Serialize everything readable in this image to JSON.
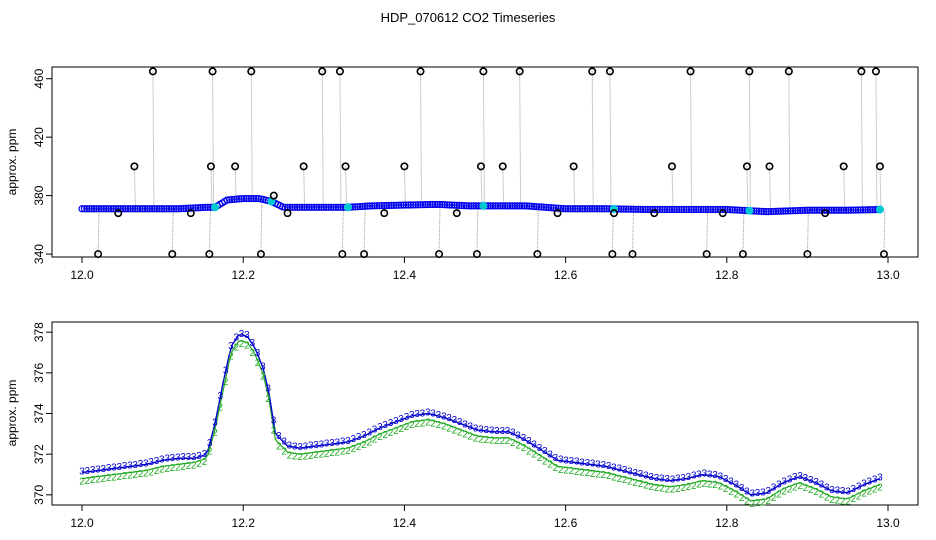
{
  "figure": {
    "title": "HDP_070612  CO2 Timeseries"
  },
  "chart_data": [
    {
      "type": "scatter",
      "panel": "top",
      "xlabel": "",
      "ylabel": "approx. ppm",
      "xlim": [
        12.0,
        13.0
      ],
      "ylim": [
        338,
        468
      ],
      "xticks": [
        "12.0",
        "12.2",
        "12.4",
        "12.6",
        "12.8",
        "13.0"
      ],
      "yticks": [
        "340",
        "380",
        "420",
        "460"
      ],
      "grid": false,
      "legend": "none",
      "colors": {
        "baseline": "#0000ee",
        "baseline_highlight": "#00c8d2",
        "outlier": "#000000",
        "drop_line": "#9a9a9a"
      },
      "baseline": {
        "x": [
          12.0,
          12.04,
          12.08,
          12.12,
          12.155,
          12.165,
          12.18,
          12.2,
          12.22,
          12.235,
          12.25,
          12.3,
          12.33,
          12.36,
          12.4,
          12.44,
          12.48,
          12.5,
          12.55,
          12.6,
          12.65,
          12.7,
          12.75,
          12.8,
          12.85,
          12.9,
          12.95,
          12.99
        ],
        "y": [
          371,
          371,
          371,
          371,
          372,
          372,
          377,
          378,
          378,
          376,
          372,
          372,
          372,
          373,
          373.5,
          374,
          373,
          373,
          373,
          371,
          371,
          370.5,
          370.5,
          370.5,
          369,
          370,
          370,
          370.5
        ]
      },
      "outliers": {
        "x": [
          12.02,
          12.045,
          12.065,
          12.088,
          12.112,
          12.135,
          12.158,
          12.16,
          12.162,
          12.19,
          12.21,
          12.222,
          12.238,
          12.255,
          12.275,
          12.298,
          12.32,
          12.323,
          12.327,
          12.35,
          12.375,
          12.4,
          12.42,
          12.443,
          12.465,
          12.49,
          12.495,
          12.498,
          12.522,
          12.543,
          12.565,
          12.59,
          12.61,
          12.633,
          12.655,
          12.658,
          12.66,
          12.683,
          12.71,
          12.732,
          12.755,
          12.775,
          12.795,
          12.82,
          12.825,
          12.828,
          12.853,
          12.877,
          12.9,
          12.922,
          12.945,
          12.967,
          12.985,
          12.99,
          12.995
        ],
        "y": [
          340,
          368,
          400,
          465,
          340,
          368,
          340,
          400,
          465,
          400,
          465,
          340,
          380,
          368,
          400,
          465,
          465,
          340,
          400,
          340,
          368,
          400,
          465,
          340,
          368,
          340,
          400,
          465,
          400,
          465,
          340,
          368,
          400,
          465,
          465,
          340,
          368,
          340,
          368,
          400,
          465,
          340,
          368,
          340,
          400,
          465,
          400,
          465,
          340,
          368,
          400,
          465,
          465,
          400,
          340
        ]
      }
    },
    {
      "type": "line",
      "panel": "bottom",
      "xlabel": "",
      "ylabel": "approx. ppm",
      "xlim": [
        12.0,
        13.0
      ],
      "ylim": [
        369.5,
        378.5
      ],
      "xticks": [
        "12.0",
        "12.2",
        "12.4",
        "12.6",
        "12.8",
        "13.0"
      ],
      "yticks": [
        "370",
        "372",
        "374",
        "376",
        "378"
      ],
      "grid": false,
      "legend": "none",
      "marker_labels": [
        "3",
        "2"
      ],
      "colors": {
        "series3": "#0000cc",
        "series2": "#22aa22",
        "line3": "#0000cc",
        "line2": "#22aa22",
        "dash": "#00c8d2"
      },
      "x": [
        12.0,
        12.02,
        12.04,
        12.06,
        12.08,
        12.1,
        12.12,
        12.14,
        12.155,
        12.165,
        12.175,
        12.185,
        12.195,
        12.205,
        12.215,
        12.225,
        12.232,
        12.24,
        12.255,
        12.27,
        12.29,
        12.31,
        12.33,
        12.35,
        12.37,
        12.39,
        12.41,
        12.43,
        12.45,
        12.47,
        12.49,
        12.51,
        12.53,
        12.55,
        12.57,
        12.59,
        12.61,
        12.63,
        12.65,
        12.67,
        12.69,
        12.71,
        12.73,
        12.75,
        12.77,
        12.79,
        12.81,
        12.83,
        12.85,
        12.87,
        12.89,
        12.91,
        12.93,
        12.95,
        12.97,
        12.99
      ],
      "series": [
        {
          "name": "3",
          "values": [
            371.1,
            371.2,
            371.3,
            371.4,
            371.5,
            371.7,
            371.8,
            371.8,
            372.0,
            373.5,
            375.5,
            377.3,
            377.9,
            377.8,
            377.2,
            376.2,
            375.0,
            373.0,
            372.4,
            372.3,
            372.4,
            372.5,
            372.6,
            372.9,
            373.3,
            373.6,
            373.9,
            374.0,
            373.8,
            373.5,
            373.2,
            373.1,
            373.1,
            372.7,
            372.2,
            371.7,
            371.6,
            371.5,
            371.4,
            371.2,
            371.0,
            370.8,
            370.7,
            370.8,
            371.0,
            370.9,
            370.5,
            370.0,
            370.1,
            370.6,
            370.9,
            370.6,
            370.2,
            370.1,
            370.5,
            370.8
          ]
        },
        {
          "name": "2",
          "values": [
            370.8,
            370.9,
            371.0,
            371.1,
            371.2,
            371.4,
            371.5,
            371.6,
            371.8,
            373.2,
            375.1,
            377.0,
            377.6,
            377.5,
            376.9,
            375.9,
            374.7,
            372.7,
            372.1,
            372.0,
            372.1,
            372.2,
            372.3,
            372.6,
            373.0,
            373.3,
            373.6,
            373.7,
            373.5,
            373.2,
            372.9,
            372.8,
            372.8,
            372.4,
            371.9,
            371.4,
            371.3,
            371.2,
            371.1,
            370.9,
            370.7,
            370.5,
            370.4,
            370.5,
            370.7,
            370.6,
            370.2,
            369.7,
            369.8,
            370.3,
            370.6,
            370.3,
            369.9,
            369.8,
            370.2,
            370.5
          ]
        }
      ]
    }
  ]
}
